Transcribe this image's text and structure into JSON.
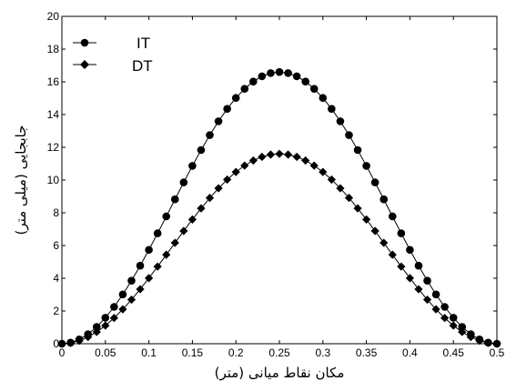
{
  "chart_data": {
    "type": "line",
    "xlabel": "مکان نقاط میانی (متر)",
    "ylabel": "جابجایی (میلی متر)",
    "xlim": [
      0,
      0.5
    ],
    "ylim": [
      0,
      20
    ],
    "xticks": [
      0,
      0.05,
      0.1,
      0.15,
      0.2,
      0.25,
      0.3,
      0.35,
      0.4,
      0.45,
      0.5
    ],
    "yticks": [
      0,
      2,
      4,
      6,
      8,
      10,
      12,
      14,
      16,
      18,
      20
    ],
    "xtick_labels": [
      "0",
      "0.05",
      "0.1",
      "0.15",
      "0.2",
      "0.25",
      "0.3",
      "0.35",
      "0.4",
      "0.45",
      "0.5"
    ],
    "ytick_labels": [
      "0",
      "2",
      "4",
      "6",
      "8",
      "10",
      "12",
      "14",
      "16",
      "18",
      "20"
    ],
    "grid": false,
    "legend_position": "top-left",
    "series": [
      {
        "name": "IT",
        "marker": "circle",
        "color": "#000000",
        "peak": 16.6,
        "x": [
          0.0,
          0.01,
          0.02,
          0.03,
          0.04,
          0.05,
          0.06,
          0.07,
          0.08,
          0.09,
          0.1,
          0.11,
          0.12,
          0.13,
          0.14,
          0.15,
          0.16,
          0.17,
          0.18,
          0.19,
          0.2,
          0.21,
          0.22,
          0.23,
          0.24,
          0.25,
          0.26,
          0.27,
          0.28,
          0.29,
          0.3,
          0.31,
          0.32,
          0.33,
          0.34,
          0.35,
          0.36,
          0.37,
          0.38,
          0.39,
          0.4,
          0.41,
          0.42,
          0.43,
          0.44,
          0.45,
          0.46,
          0.47,
          0.48,
          0.49,
          0.5
        ]
      },
      {
        "name": "DT",
        "marker": "diamond",
        "color": "#000000",
        "peak": 11.6,
        "x": [
          0.0,
          0.01,
          0.02,
          0.03,
          0.04,
          0.05,
          0.06,
          0.07,
          0.08,
          0.09,
          0.1,
          0.11,
          0.12,
          0.13,
          0.14,
          0.15,
          0.16,
          0.17,
          0.18,
          0.19,
          0.2,
          0.21,
          0.22,
          0.23,
          0.24,
          0.25,
          0.26,
          0.27,
          0.28,
          0.29,
          0.3,
          0.31,
          0.32,
          0.33,
          0.34,
          0.35,
          0.36,
          0.37,
          0.38,
          0.39,
          0.4,
          0.41,
          0.42,
          0.43,
          0.44,
          0.45,
          0.46,
          0.47,
          0.48,
          0.49,
          0.5
        ]
      }
    ]
  }
}
